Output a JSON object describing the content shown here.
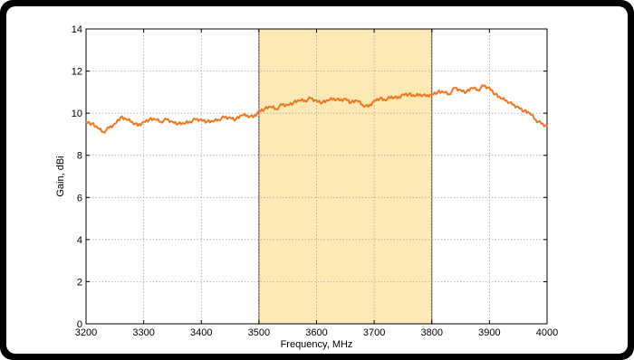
{
  "chart_data": {
    "type": "line",
    "title": "",
    "xlabel": "Frequency, MHz",
    "ylabel": "Gain, dBi",
    "xlim": [
      3200,
      4000
    ],
    "ylim": [
      0,
      14
    ],
    "xticks": [
      3200,
      3300,
      3400,
      3500,
      3600,
      3700,
      3800,
      3900,
      4000
    ],
    "yticks": [
      0,
      2,
      4,
      6,
      8,
      10,
      12,
      14
    ],
    "grid": true,
    "highlight_band": {
      "x_start": 3500,
      "x_end": 3800,
      "color": "#fde9b6"
    },
    "series": [
      {
        "color": "#f07820",
        "x": [
          3200,
          3210,
          3220,
          3230,
          3240,
          3250,
          3260,
          3270,
          3280,
          3290,
          3300,
          3310,
          3320,
          3330,
          3340,
          3350,
          3360,
          3370,
          3380,
          3390,
          3400,
          3410,
          3420,
          3430,
          3440,
          3450,
          3460,
          3470,
          3480,
          3490,
          3500,
          3510,
          3520,
          3530,
          3540,
          3550,
          3560,
          3570,
          3580,
          3590,
          3600,
          3610,
          3620,
          3630,
          3640,
          3650,
          3660,
          3670,
          3680,
          3690,
          3700,
          3710,
          3720,
          3730,
          3740,
          3750,
          3760,
          3770,
          3780,
          3790,
          3800,
          3810,
          3820,
          3830,
          3840,
          3850,
          3860,
          3870,
          3880,
          3890,
          3900,
          3910,
          3920,
          3930,
          3940,
          3950,
          3960,
          3970,
          3980,
          3990,
          4000
        ],
        "y": [
          9.6,
          9.5,
          9.3,
          9.1,
          9.3,
          9.5,
          9.8,
          9.7,
          9.6,
          9.4,
          9.6,
          9.7,
          9.7,
          9.6,
          9.7,
          9.6,
          9.5,
          9.5,
          9.6,
          9.7,
          9.7,
          9.6,
          9.6,
          9.7,
          9.8,
          9.8,
          9.7,
          9.9,
          9.9,
          9.8,
          10.1,
          10.2,
          10.3,
          10.2,
          10.4,
          10.4,
          10.5,
          10.6,
          10.6,
          10.7,
          10.6,
          10.5,
          10.6,
          10.7,
          10.6,
          10.7,
          10.5,
          10.6,
          10.4,
          10.3,
          10.6,
          10.7,
          10.6,
          10.8,
          10.7,
          10.9,
          10.9,
          10.8,
          10.9,
          10.8,
          10.9,
          11.0,
          11.0,
          10.9,
          11.2,
          11.1,
          11.0,
          11.2,
          11.1,
          11.3,
          11.2,
          10.9,
          10.7,
          10.6,
          10.4,
          10.3,
          10.1,
          10.0,
          9.7,
          9.5,
          9.4
        ]
      }
    ]
  }
}
